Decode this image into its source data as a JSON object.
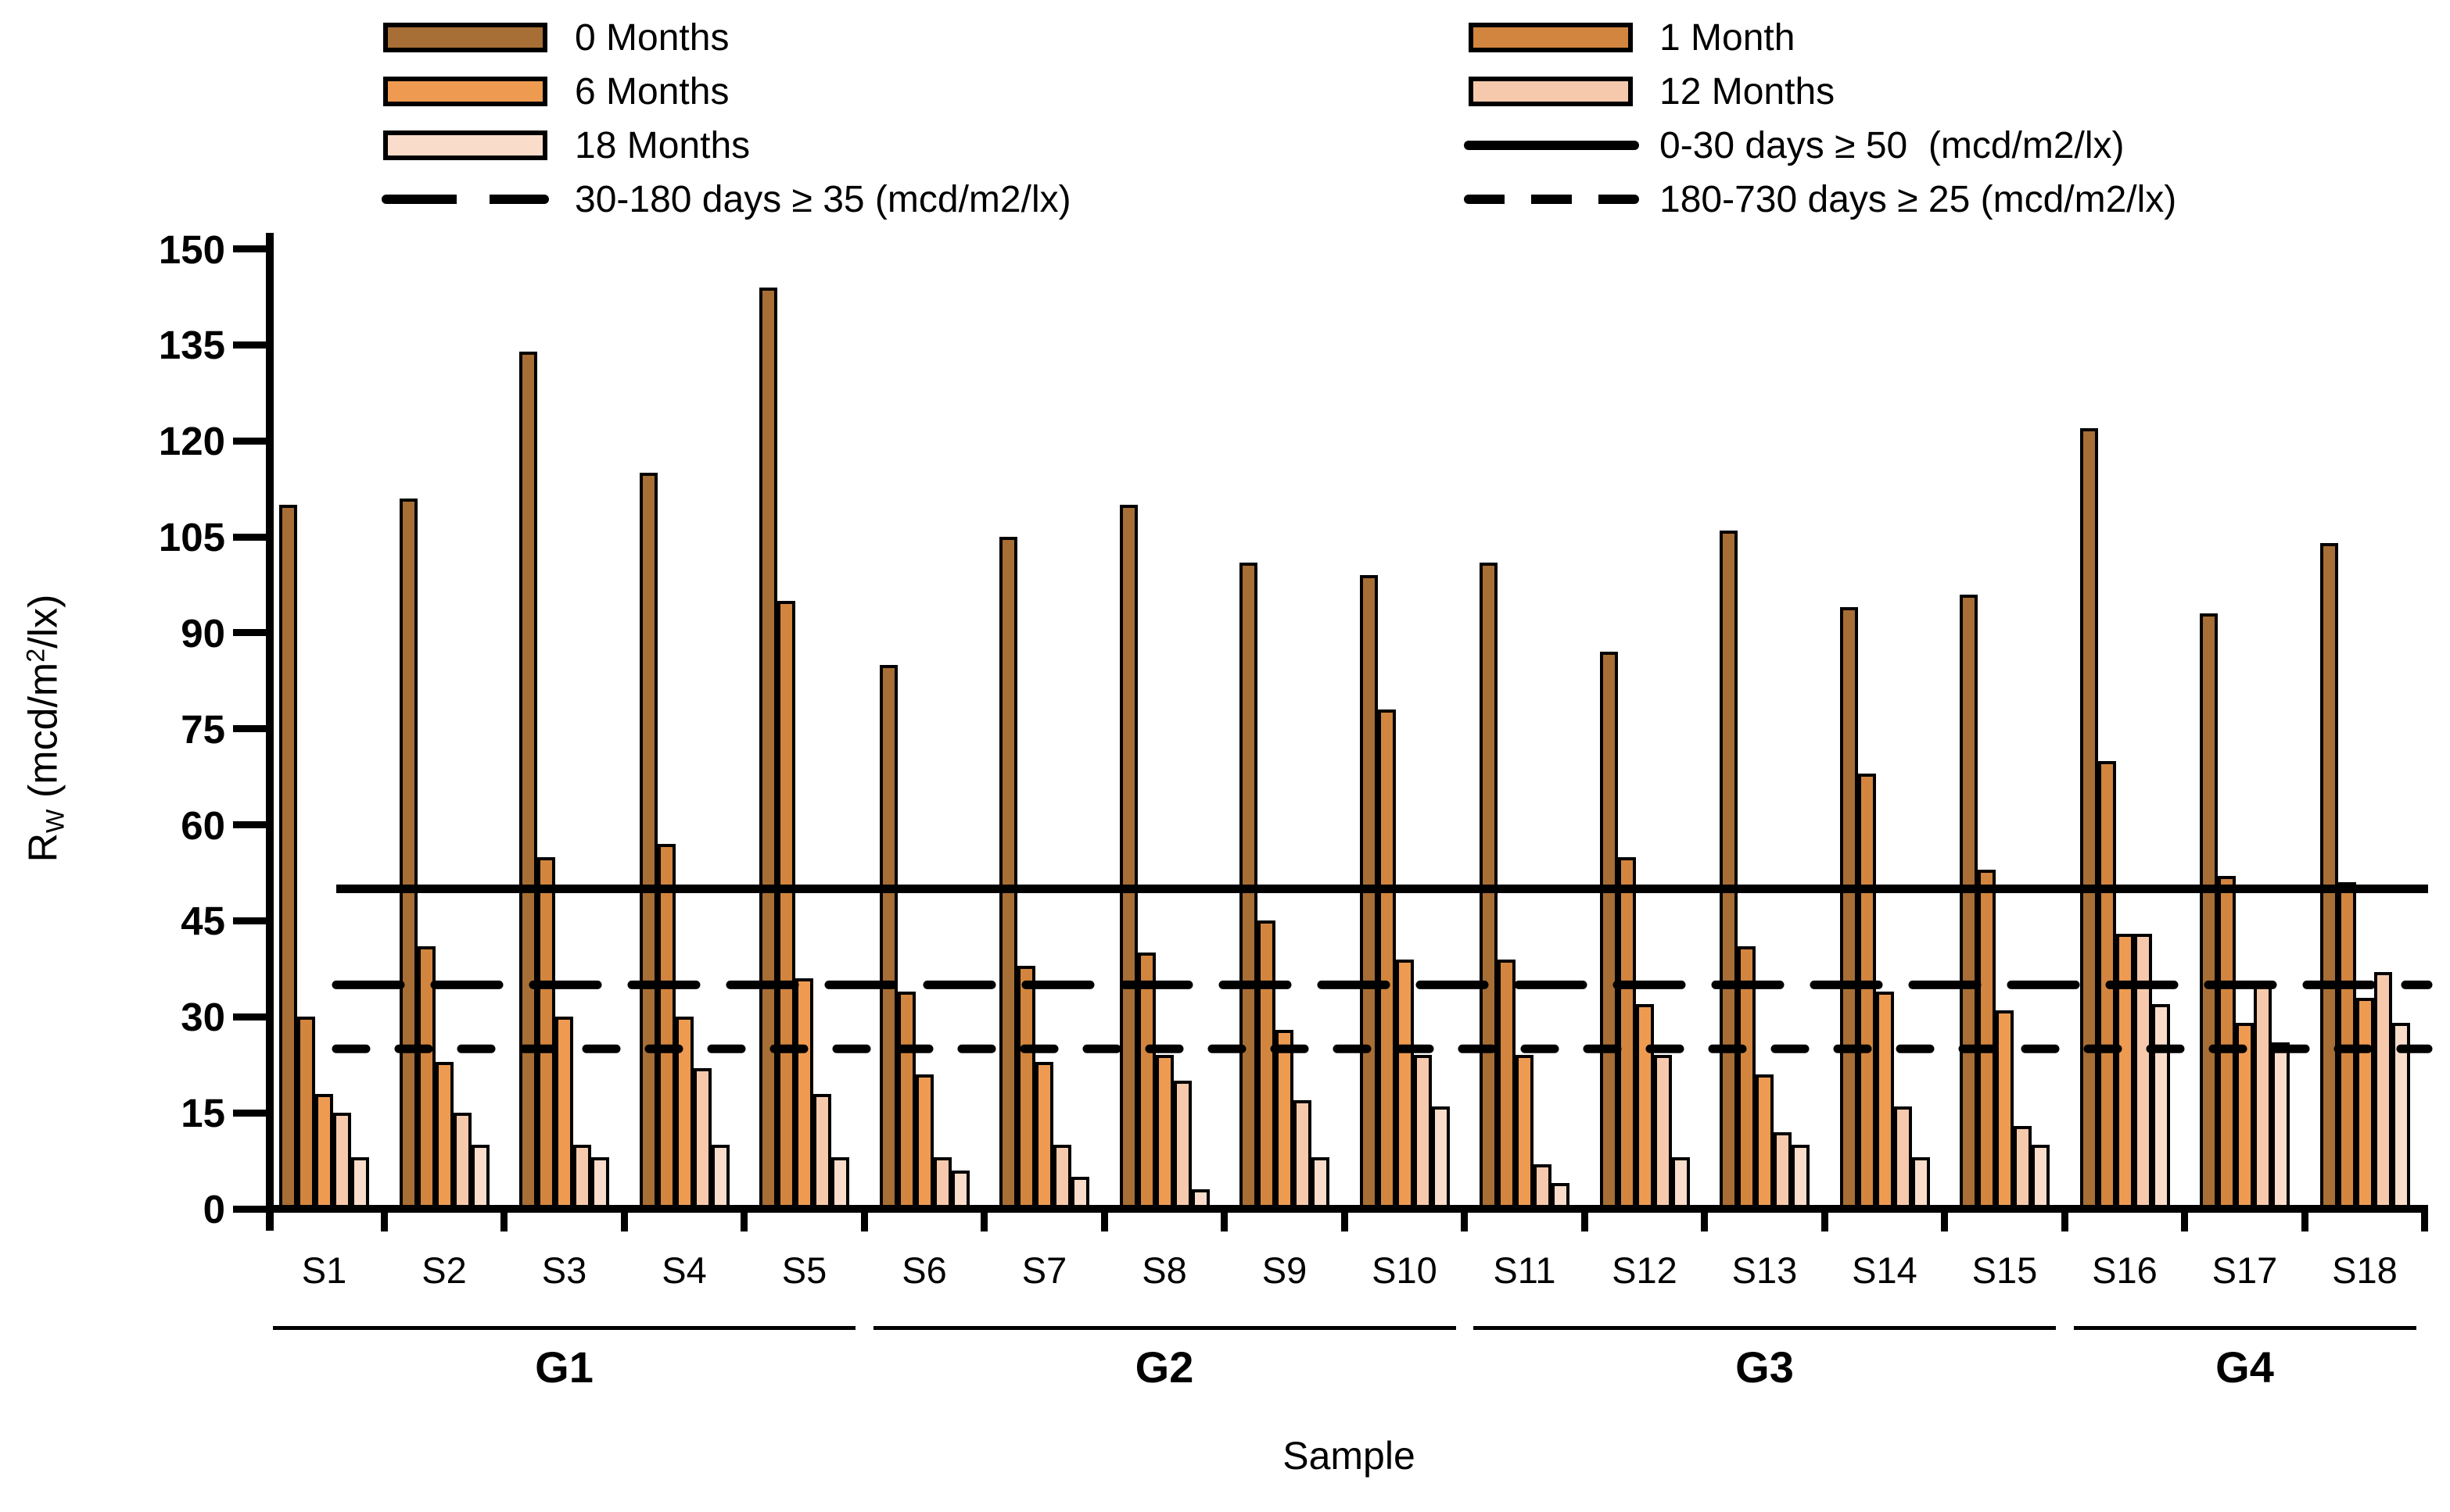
{
  "background": "#ffffff",
  "legend": {
    "left": [
      {
        "type": "swatch",
        "series": "0 Months",
        "label": "0 Months"
      },
      {
        "type": "swatch",
        "series": "6 Months",
        "label": "6 Months"
      },
      {
        "type": "swatch",
        "series": "18 Months",
        "label": "18 Months"
      },
      {
        "type": "long_dash_line",
        "label": "30-180 days ≥ 35 (mcd/m2/lx)"
      }
    ],
    "right": [
      {
        "type": "swatch",
        "series": "1 Month",
        "label": "1 Month"
      },
      {
        "type": "swatch",
        "series": "12 Months",
        "label": "12 Months"
      },
      {
        "type": "solid_line",
        "label": "0-30 days ≥ 50  (mcd/m2/lx)"
      },
      {
        "type": "short_dash_line",
        "label": "180-730 days ≥ 25 (mcd/m2/lx)"
      }
    ]
  },
  "chart_data": {
    "type": "bar",
    "title": "",
    "xlabel": "Sample",
    "ylabel": "Rw (mcd/m2/lx)",
    "ylabel_parts": {
      "base": "R",
      "sub": "W",
      "open": " (mcd/m",
      "sup": "2",
      "close": "/lx)"
    },
    "ylim": [
      0,
      150
    ],
    "yticks": [
      0,
      15,
      30,
      45,
      60,
      75,
      90,
      105,
      120,
      135,
      150
    ],
    "grid": false,
    "legend_position": "top",
    "categories": [
      "S1",
      "S2",
      "S3",
      "S4",
      "S5",
      "S6",
      "S7",
      "S8",
      "S9",
      "S10",
      "S11",
      "S12",
      "S13",
      "S14",
      "S15",
      "S16",
      "S17",
      "S18"
    ],
    "groups": [
      {
        "label": "G1",
        "from": 0,
        "to": 4
      },
      {
        "label": "G2",
        "from": 5,
        "to": 9
      },
      {
        "label": "G3",
        "from": 10,
        "to": 14
      },
      {
        "label": "G4",
        "from": 15,
        "to": 17
      }
    ],
    "series": [
      {
        "name": "0 Months",
        "color": "#a76e35",
        "values": [
          110,
          111,
          134,
          115,
          144,
          85,
          105,
          110,
          101,
          99,
          101,
          87,
          106,
          94,
          96,
          122,
          93,
          104
        ]
      },
      {
        "name": "1 Month",
        "color": "#d2853e",
        "values": [
          30,
          41,
          55,
          57,
          95,
          34,
          38,
          40,
          45,
          78,
          39,
          55,
          41,
          68,
          53,
          70,
          52,
          51
        ]
      },
      {
        "name": "6 Months",
        "color": "#ee9b51",
        "values": [
          18,
          23,
          30,
          30,
          36,
          21,
          23,
          24,
          28,
          39,
          24,
          32,
          21,
          34,
          31,
          43,
          29,
          33
        ]
      },
      {
        "name": "12 Months",
        "color": "#f7c9ac",
        "values": [
          15,
          15,
          10,
          22,
          18,
          8,
          10,
          20,
          17,
          24,
          7,
          24,
          12,
          16,
          13,
          43,
          35,
          37
        ]
      },
      {
        "name": "18 Months",
        "color": "#f9dcca",
        "values": [
          8,
          10,
          8,
          10,
          8,
          6,
          5,
          3,
          8,
          16,
          4,
          8,
          10,
          8,
          10,
          32,
          26,
          29
        ]
      }
    ],
    "ref_lines": [
      {
        "label": "0-30 days ≥ 50  (mcd/m2/lx)",
        "value": 50,
        "style": "solid"
      },
      {
        "label": "30-180 days ≥ 35 (mcd/m2/lx)",
        "value": 35,
        "style": "long_dash"
      },
      {
        "label": "180-730 days ≥ 25 (mcd/m2/lx)",
        "value": 25,
        "style": "short_dash"
      }
    ]
  }
}
